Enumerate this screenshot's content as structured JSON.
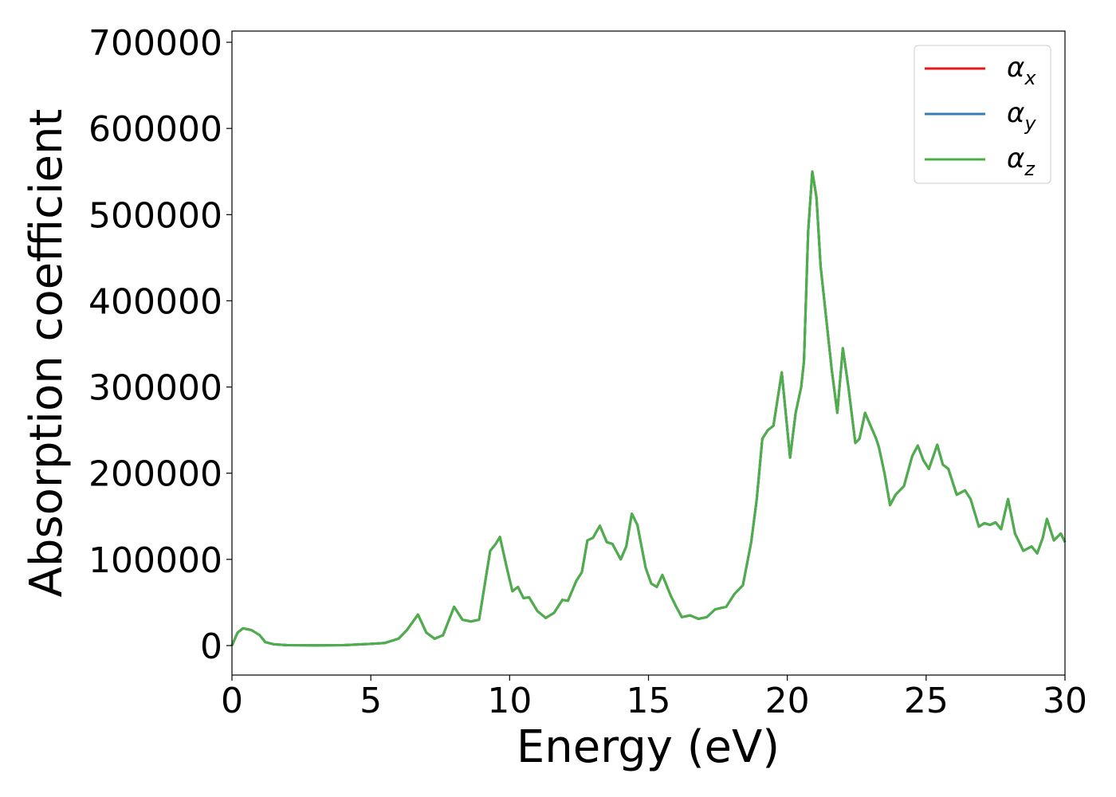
{
  "chart_data": {
    "type": "line",
    "xlabel": "Energy (eV)",
    "ylabel": "Absorption coefficient",
    "x": [
      0,
      0.2,
      0.4,
      0.7,
      1.0,
      1.2,
      1.5,
      2,
      3,
      4,
      5,
      5.5,
      6,
      6.3,
      6.7,
      7.0,
      7.3,
      7.6,
      8.0,
      8.3,
      8.6,
      8.9,
      9.1,
      9.3,
      9.5,
      9.65,
      9.9,
      10.1,
      10.3,
      10.5,
      10.7,
      11.0,
      11.3,
      11.6,
      11.9,
      12.1,
      12.4,
      12.6,
      12.8,
      13.0,
      13.25,
      13.5,
      13.7,
      14.0,
      14.2,
      14.4,
      14.6,
      14.9,
      15.1,
      15.3,
      15.5,
      15.8,
      16.0,
      16.2,
      16.5,
      16.8,
      17.1,
      17.4,
      17.8,
      18.1,
      18.4,
      18.7,
      18.9,
      19.1,
      19.3,
      19.5,
      19.8,
      20.1,
      20.3,
      20.5,
      20.6,
      20.75,
      20.9,
      21.05,
      21.2,
      21.4,
      21.6,
      21.8,
      22.0,
      22.2,
      22.45,
      22.6,
      22.8,
      23.0,
      23.2,
      23.3,
      23.5,
      23.7,
      23.9,
      24.2,
      24.5,
      24.7,
      24.9,
      25.1,
      25.4,
      25.6,
      25.8,
      26.1,
      26.4,
      26.6,
      26.9,
      27.1,
      27.3,
      27.5,
      27.7,
      27.95,
      28.2,
      28.5,
      28.8,
      29.0,
      29.2,
      29.35,
      29.6,
      29.85,
      30
    ],
    "series": [
      {
        "name": "αx",
        "color": "#e41a1c",
        "values": [
          0,
          15000,
          20000,
          18000,
          12000,
          4000,
          1500,
          500,
          200,
          500,
          2000,
          3000,
          8000,
          18000,
          36000,
          15000,
          8000,
          12000,
          45000,
          30000,
          28000,
          30000,
          70000,
          110000,
          118000,
          126000,
          90000,
          63000,
          68000,
          55000,
          56000,
          40000,
          32000,
          38000,
          53000,
          52000,
          75000,
          85000,
          122000,
          125000,
          139000,
          120000,
          118000,
          100000,
          115000,
          153000,
          140000,
          90000,
          72000,
          68000,
          82000,
          58000,
          45000,
          33000,
          35000,
          31000,
          33000,
          42000,
          45000,
          60000,
          70000,
          120000,
          170000,
          240000,
          250000,
          255000,
          317000,
          218000,
          270000,
          300000,
          330000,
          480000,
          550000,
          520000,
          440000,
          380000,
          320000,
          270000,
          345000,
          300000,
          235000,
          240000,
          270000,
          255000,
          240000,
          230000,
          200000,
          163000,
          175000,
          185000,
          220000,
          232000,
          215000,
          205000,
          233000,
          210000,
          205000,
          175000,
          180000,
          170000,
          138000,
          142000,
          140000,
          143000,
          135000,
          170000,
          130000,
          110000,
          115000,
          107000,
          125000,
          147000,
          122000,
          130000,
          120000
        ]
      },
      {
        "name": "αy",
        "color": "#377eb8",
        "values": [
          0,
          15000,
          20000,
          18000,
          12000,
          4000,
          1500,
          500,
          200,
          500,
          2000,
          3000,
          8000,
          18000,
          36000,
          15000,
          8000,
          12000,
          45000,
          30000,
          28000,
          30000,
          70000,
          110000,
          118000,
          126000,
          90000,
          63000,
          68000,
          55000,
          56000,
          40000,
          32000,
          38000,
          53000,
          52000,
          75000,
          85000,
          122000,
          125000,
          139000,
          120000,
          118000,
          100000,
          115000,
          153000,
          140000,
          90000,
          72000,
          68000,
          82000,
          58000,
          45000,
          33000,
          35000,
          31000,
          33000,
          42000,
          45000,
          60000,
          70000,
          120000,
          170000,
          240000,
          250000,
          255000,
          317000,
          218000,
          270000,
          300000,
          330000,
          480000,
          550000,
          520000,
          440000,
          380000,
          320000,
          270000,
          345000,
          300000,
          235000,
          240000,
          270000,
          255000,
          240000,
          230000,
          200000,
          163000,
          175000,
          185000,
          220000,
          232000,
          215000,
          205000,
          233000,
          210000,
          205000,
          175000,
          180000,
          170000,
          138000,
          142000,
          140000,
          143000,
          135000,
          170000,
          130000,
          110000,
          115000,
          107000,
          125000,
          147000,
          122000,
          130000,
          120000
        ]
      },
      {
        "name": "αz",
        "color": "#4daf4a",
        "values": [
          0,
          15000,
          20000,
          18000,
          12000,
          4000,
          1500,
          500,
          200,
          500,
          2000,
          3000,
          8000,
          18000,
          36000,
          15000,
          8000,
          12000,
          45000,
          30000,
          28000,
          30000,
          70000,
          110000,
          118000,
          126000,
          90000,
          63000,
          68000,
          55000,
          56000,
          40000,
          32000,
          38000,
          53000,
          52000,
          75000,
          85000,
          122000,
          125000,
          139000,
          120000,
          118000,
          100000,
          115000,
          153000,
          140000,
          90000,
          72000,
          68000,
          82000,
          58000,
          45000,
          33000,
          35000,
          31000,
          33000,
          42000,
          45000,
          60000,
          70000,
          120000,
          170000,
          240000,
          250000,
          255000,
          317000,
          218000,
          270000,
          300000,
          330000,
          480000,
          550000,
          520000,
          440000,
          380000,
          320000,
          270000,
          345000,
          300000,
          235000,
          240000,
          270000,
          255000,
          240000,
          230000,
          200000,
          163000,
          175000,
          185000,
          220000,
          232000,
          215000,
          205000,
          233000,
          210000,
          205000,
          175000,
          180000,
          170000,
          138000,
          142000,
          140000,
          143000,
          135000,
          170000,
          130000,
          110000,
          115000,
          107000,
          125000,
          147000,
          122000,
          130000,
          120000
        ]
      }
    ],
    "xlim": [
      0,
      30
    ],
    "xticks": [
      0,
      5,
      10,
      15,
      20,
      25,
      30
    ],
    "ylim": [
      -34215,
      712960
    ],
    "yticks": [
      0,
      100000,
      200000,
      300000,
      400000,
      500000,
      600000,
      700000
    ],
    "legend": "upper right"
  }
}
